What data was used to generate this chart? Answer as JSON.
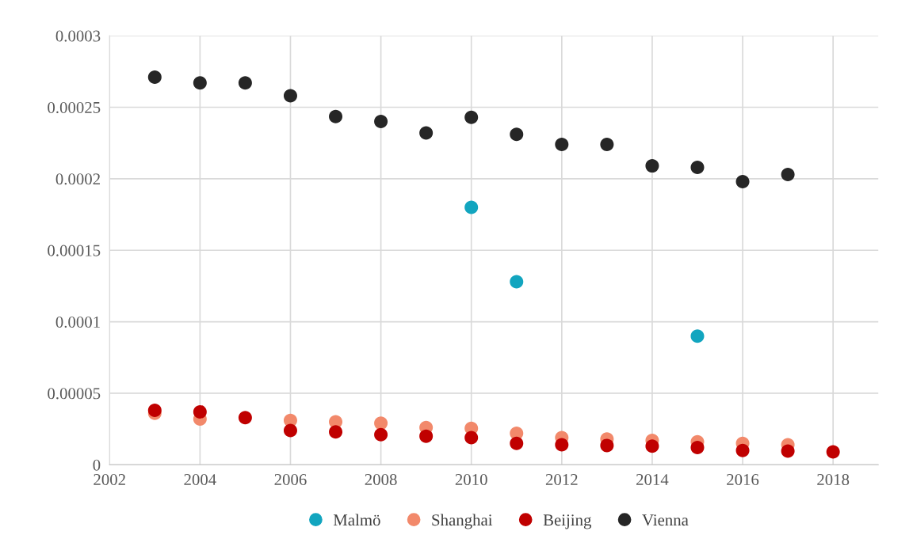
{
  "chart_data": {
    "type": "scatter",
    "marker": "circle",
    "grid": true,
    "legend": "bottom",
    "xlim": [
      2002,
      2019
    ],
    "xticks": [
      2002,
      2004,
      2006,
      2008,
      2010,
      2012,
      2014,
      2016,
      2018
    ],
    "ylim": [
      0,
      0.0003
    ],
    "yticks": [
      {
        "value": 0,
        "label": "0"
      },
      {
        "value": 5e-05,
        "label": "0.00005"
      },
      {
        "value": 0.0001,
        "label": "0.0001"
      },
      {
        "value": 0.00015,
        "label": "0.00015"
      },
      {
        "value": 0.0002,
        "label": "0.0002"
      },
      {
        "value": 0.00025,
        "label": "0.00025"
      },
      {
        "value": 0.0003,
        "label": "0.0003"
      }
    ],
    "series": [
      {
        "name": "Malmö",
        "color": "#12a5bf",
        "x": [
          2010,
          2011,
          2015
        ],
        "values": [
          0.00018,
          0.000128,
          9e-05
        ]
      },
      {
        "name": "Shanghai",
        "color": "#f2896b",
        "x": [
          2003,
          2004,
          2005,
          2006,
          2007,
          2008,
          2009,
          2010,
          2011,
          2012,
          2013,
          2014,
          2015,
          2016,
          2017
        ],
        "values": [
          3.6e-05,
          3.2e-05,
          null,
          3.1e-05,
          3e-05,
          2.9e-05,
          2.6e-05,
          2.55e-05,
          2.2e-05,
          1.9e-05,
          1.8e-05,
          1.7e-05,
          1.6e-05,
          1.5e-05,
          1.4e-05
        ]
      },
      {
        "name": "Beijing",
        "color": "#c00000",
        "x": [
          2003,
          2004,
          2005,
          2006,
          2007,
          2008,
          2009,
          2010,
          2011,
          2012,
          2013,
          2014,
          2015,
          2016,
          2017,
          2018
        ],
        "values": [
          3.8e-05,
          3.7e-05,
          3.3e-05,
          2.4e-05,
          2.3e-05,
          2.1e-05,
          2e-05,
          1.9e-05,
          1.5e-05,
          1.4e-05,
          1.35e-05,
          1.3e-05,
          1.2e-05,
          1e-05,
          9.5e-06,
          9e-06
        ]
      },
      {
        "name": "Vienna",
        "color": "#262626",
        "x": [
          2003,
          2004,
          2005,
          2006,
          2007,
          2008,
          2009,
          2010,
          2011,
          2012,
          2013,
          2014,
          2015,
          2016,
          2017
        ],
        "values": [
          0.000271,
          0.000267,
          0.000267,
          0.000258,
          0.0002435,
          0.00024,
          0.000232,
          0.000243,
          0.000231,
          0.000224,
          0.000224,
          0.000209,
          0.000208,
          0.000198,
          0.000203
        ]
      }
    ]
  }
}
